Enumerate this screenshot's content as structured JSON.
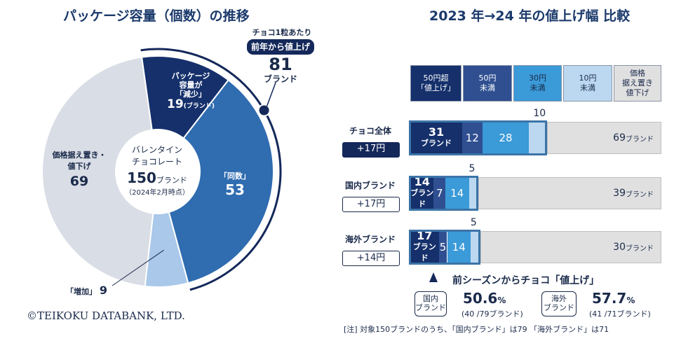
{
  "left_title": "パッケージ容量（個数）の推移",
  "right_title": "2023 年→24 年の値上げ幅 比較",
  "donut": {
    "center_line1": "バレンタイン",
    "center_line2": "チョコレート",
    "center_total": "150",
    "center_unit": "ブランド",
    "center_date": "（2024年2月時点）",
    "segments": [
      {
        "key": "reduced",
        "label1": "パッケージ",
        "label2": "容量が",
        "label3": "「減少」",
        "value_text": "19",
        "value_unit": "(ブランド)",
        "color": "#15306b",
        "value": 19
      },
      {
        "key": "same",
        "label1": "「同数」",
        "value_text": "53",
        "color": "#2f6cb0",
        "value": 53
      },
      {
        "key": "increased",
        "label1": "「増加」",
        "value_text": "9",
        "color": "#a9c8ea",
        "value": 9
      },
      {
        "key": "price_flat_down",
        "label1": "価格据え置き・",
        "label2": "値下げ",
        "value_text": "69",
        "color": "#d9dde5",
        "value": 69
      }
    ]
  },
  "price_callout": {
    "note": "チョコ1粒あたり",
    "pill": "前年から値上げ",
    "total": "81",
    "unit": "ブランド"
  },
  "legend": [
    {
      "line1": "50円超",
      "line2": "「値上げ」",
      "color": "#15306b",
      "text_color": "#ffffff"
    },
    {
      "line1": "50円",
      "line2": "未満",
      "color": "#2f4f91",
      "text_color": "#ffffff"
    },
    {
      "line1": "30円",
      "line2": "未満",
      "color": "#3b9ad8",
      "text_color": "#1a2a4a"
    },
    {
      "line1": "10円",
      "line2": "未満",
      "color": "#bcd8f0",
      "text_color": "#1a2a4a"
    },
    {
      "line1": "価格",
      "line2": "据え置き",
      "line3": "値下げ",
      "color": "#e0e0e0",
      "text_color": "#1a2a4a"
    }
  ],
  "chart_data": {
    "type": "bar",
    "orientation": "horizontal-stacked",
    "categories": [
      "チョコ全体",
      "国内ブランド",
      "海外ブランド"
    ],
    "series": [
      {
        "name": "50円超「値上げ」",
        "values": [
          31,
          14,
          17
        ]
      },
      {
        "name": "50円未満",
        "values": [
          12,
          7,
          5
        ]
      },
      {
        "name": "30円未満",
        "values": [
          28,
          14,
          14
        ]
      },
      {
        "name": "10円未満",
        "values": [
          10,
          5,
          5
        ]
      },
      {
        "name": "価格据え置き値下げ",
        "values": [
          69,
          39,
          30
        ]
      }
    ],
    "value_unit": "ブランド",
    "badges": [
      "+17円",
      "+17円",
      "+14円"
    ]
  },
  "rows": [
    {
      "label": "チョコ全体",
      "badge": "+17円",
      "v50": "31",
      "v50unit": "ブランド",
      "v30": "12",
      "v10": "28",
      "small": "10",
      "rest": "69",
      "rest_unit": "ブランド"
    },
    {
      "label": "国内ブランド",
      "badge": "+17円",
      "v50": "14",
      "v50unit": "ブランド",
      "v30": "7",
      "v10": "14",
      "small": "5",
      "rest": "39",
      "rest_unit": "ブランド"
    },
    {
      "label": "海外ブランド",
      "badge": "+14円",
      "v50": "17",
      "v50unit": "ブランド",
      "v30": "5",
      "v10": "14",
      "small": "5",
      "rest": "30",
      "rest_unit": "ブランド"
    }
  ],
  "share": {
    "heading": "前シーズンからチョコ「値上げ」",
    "domestic_tag1": "国内",
    "domestic_tag2": "ブランド",
    "domestic_pct": "50.6",
    "domestic_pct_sign": "%",
    "domestic_sub": "(40 /79ブランド)",
    "foreign_tag1": "海外",
    "foreign_tag2": "ブランド",
    "foreign_pct": "57.7",
    "foreign_pct_sign": "%",
    "foreign_sub": "(41 /71ブランド)"
  },
  "copyright": "©TEIKOKU DATABANK, LTD.",
  "note": "[注] 対象150ブランドのうち、「国内ブランド」は79 「海外ブランド」は71"
}
